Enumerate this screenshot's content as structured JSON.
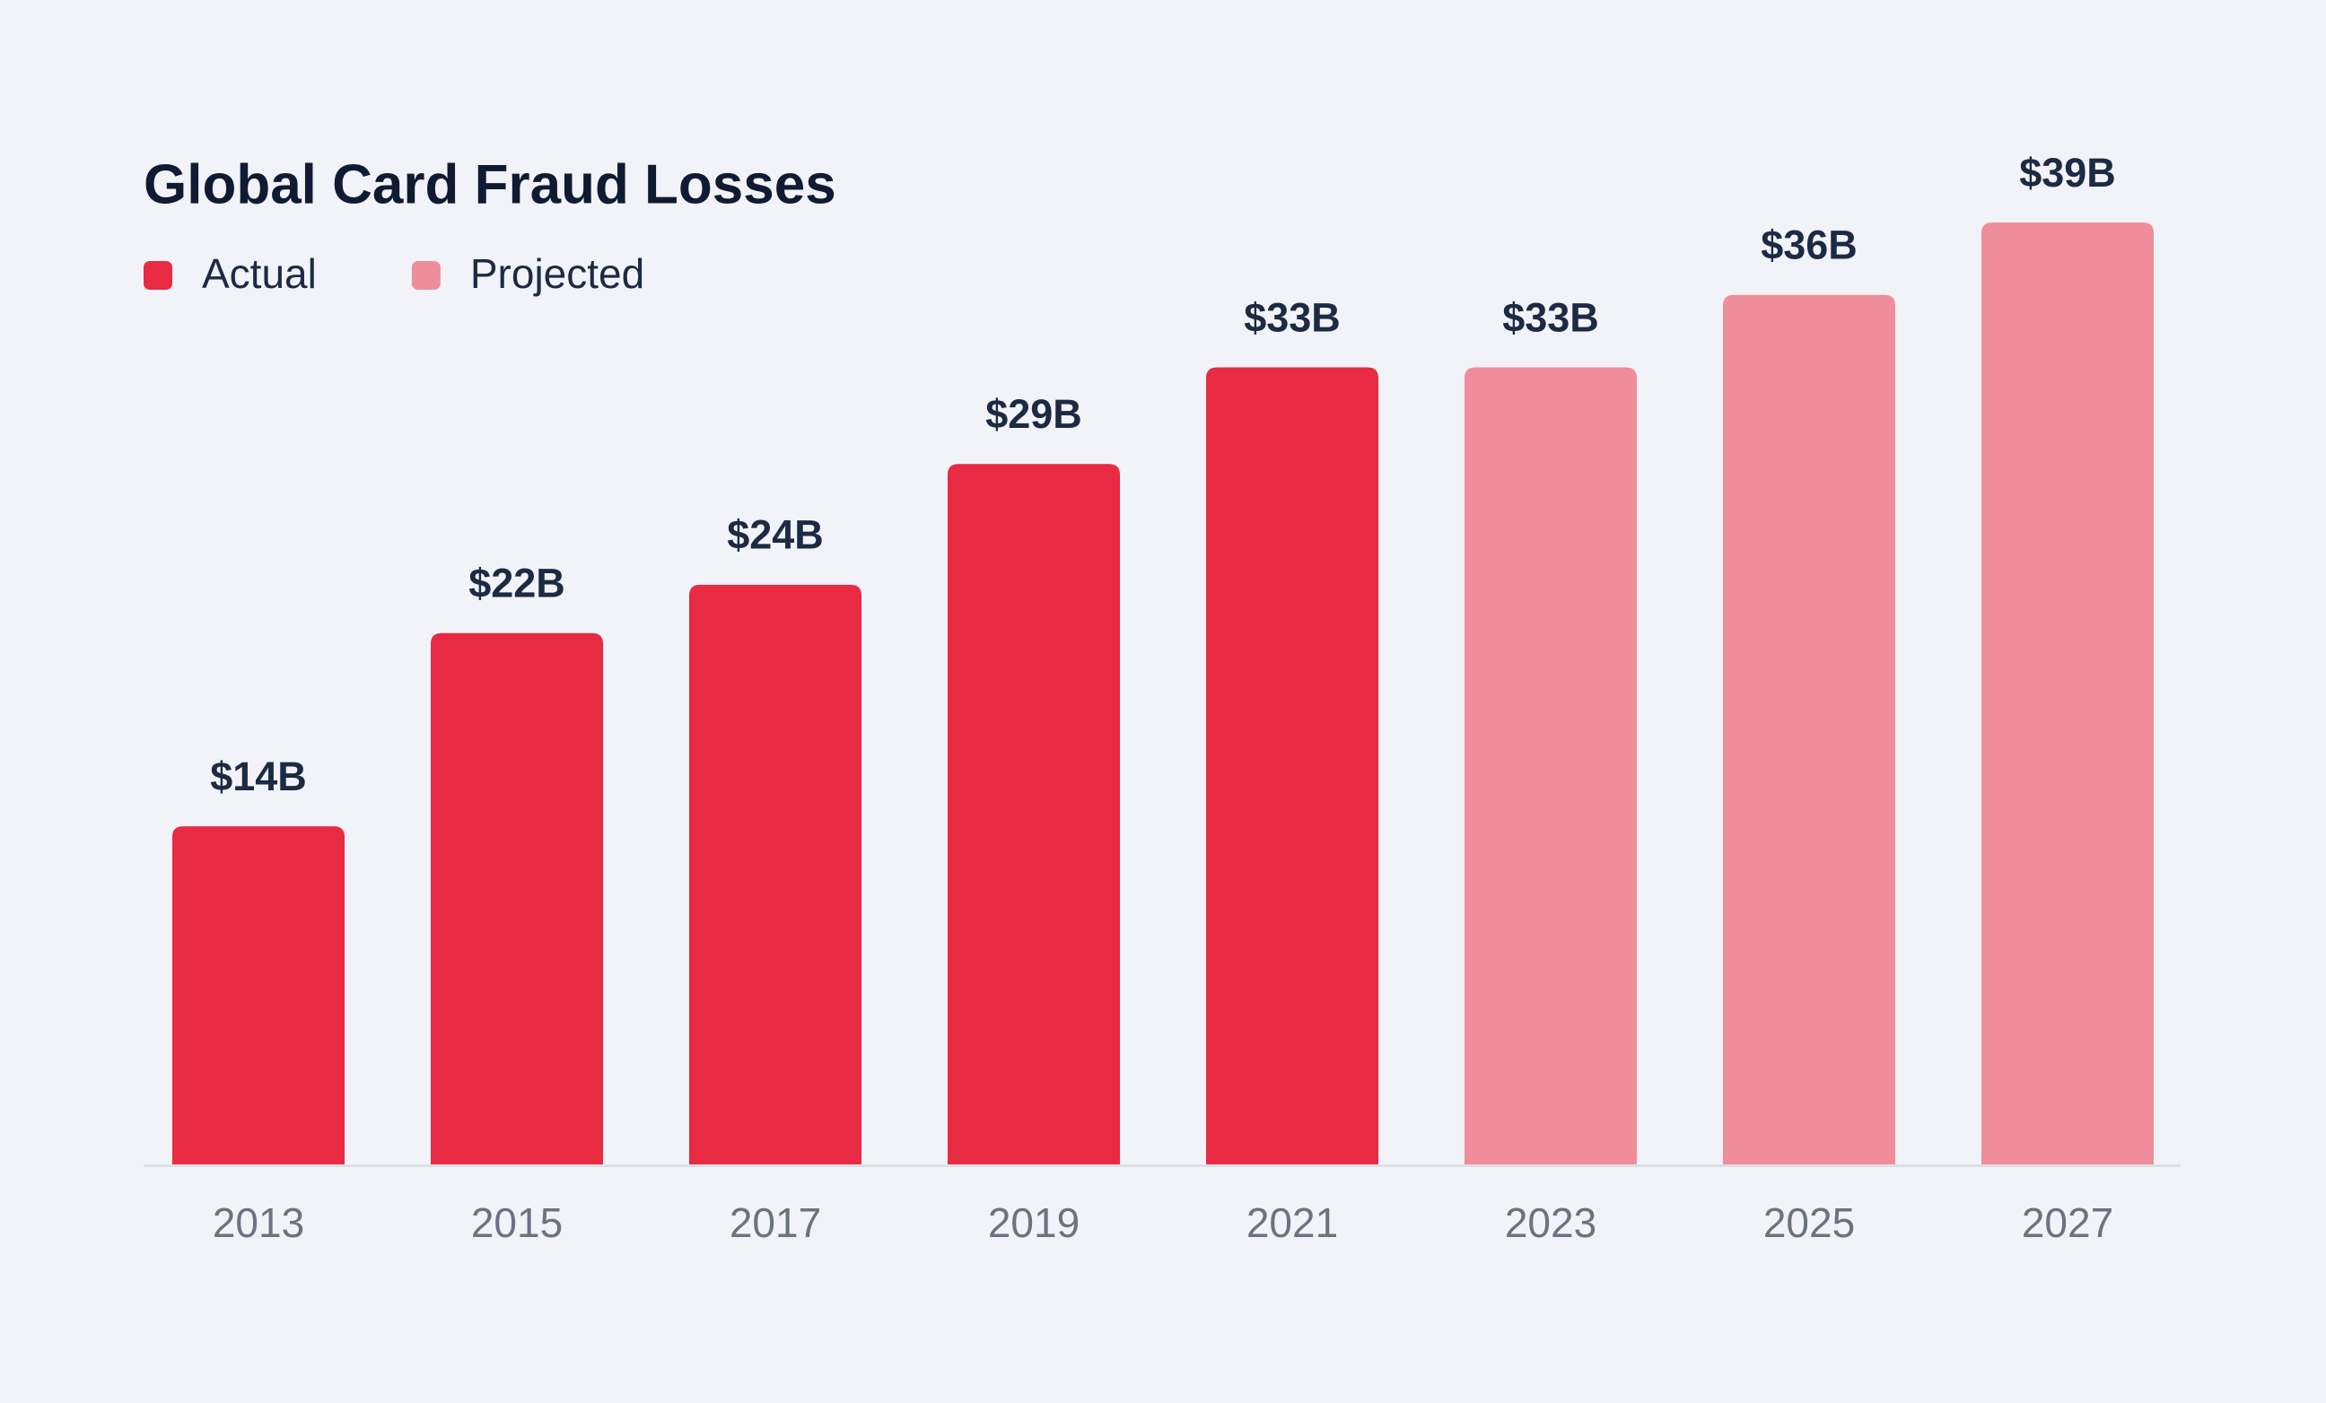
{
  "chart_data": {
    "type": "bar",
    "title": "Global Card Fraud Losses",
    "categories": [
      "2013",
      "2015",
      "2017",
      "2019",
      "2021",
      "2023",
      "2025",
      "2027"
    ],
    "series": [
      {
        "name": "Actual",
        "color": "#e82a42",
        "values": [
          14,
          22,
          24,
          29,
          33,
          null,
          null,
          null
        ],
        "value_labels": [
          "$14B",
          "$22B",
          "$24B",
          "$29B",
          "$33B",
          null,
          null,
          null
        ]
      },
      {
        "name": "Projected",
        "color": "#ef8d9a",
        "values": [
          null,
          null,
          null,
          null,
          null,
          33,
          36,
          39
        ],
        "value_labels": [
          null,
          null,
          null,
          null,
          null,
          "$33B",
          "$36B",
          "$39B"
        ]
      }
    ],
    "legend": "top-left",
    "grid": false
  }
}
